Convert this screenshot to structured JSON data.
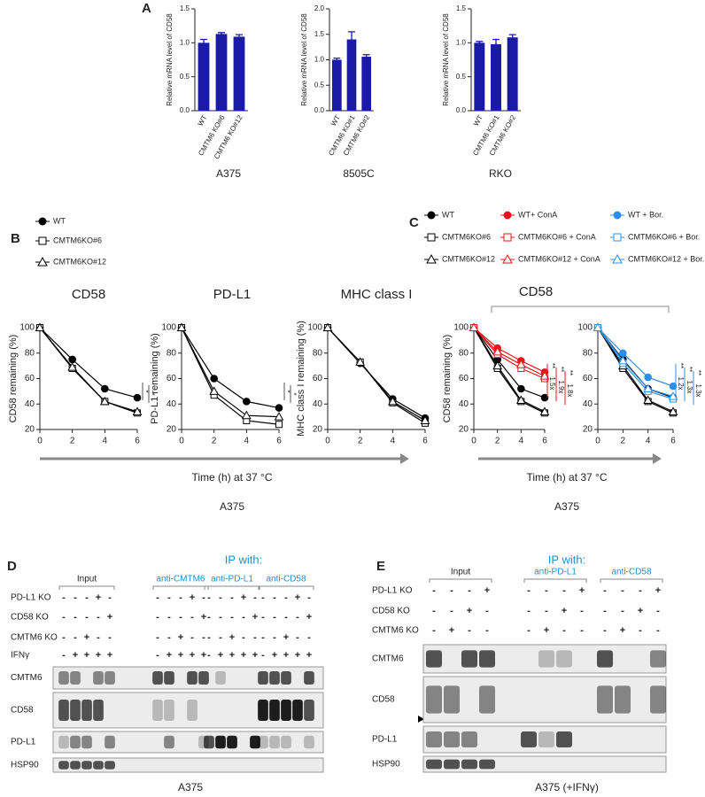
{
  "chart_data": [
    {
      "type": "bar",
      "panel": "A",
      "ylabel": "Relative mRNA level of CD58",
      "caption": "A375",
      "categories": [
        "WT",
        "CMTM6 KO#6",
        "CMTM6 KO#12"
      ],
      "values": [
        1.0,
        1.13,
        1.09
      ],
      "errors": [
        0.05,
        0.02,
        0.03
      ],
      "color": "#1a1aa6",
      "ylim": [
        0,
        1.5
      ],
      "yticks": [
        {
          "value": 0,
          "label": "0.0"
        },
        0.5,
        {
          "value": 1,
          "label": "1.0"
        },
        1.5
      ]
    },
    {
      "type": "bar",
      "ylabel": "Relative mRNA level of CD58",
      "caption": "8505C",
      "categories": [
        "WT",
        "CMTM6 KO#1",
        "CMTM6 KO#2"
      ],
      "values": [
        1.0,
        1.4,
        1.06
      ],
      "errors": [
        0.03,
        0.15,
        0.04
      ],
      "color": "#1a1aa6",
      "ylim": [
        0,
        2
      ],
      "yticks": [
        {
          "value": 0,
          "label": "0.0"
        },
        0.5,
        {
          "value": 1,
          "label": "1.0"
        },
        1.5,
        {
          "value": 2,
          "label": "2.0"
        }
      ]
    },
    {
      "type": "bar",
      "ylabel": "Relative mRNA level of CD58",
      "caption": "RKO",
      "categories": [
        "WT",
        "CMTM6 KO#1",
        "CMTM6 KO#2"
      ],
      "values": [
        1.0,
        0.98,
        1.08
      ],
      "errors": [
        0.02,
        0.07,
        0.04
      ],
      "color": "#1a1aa6",
      "ylim": [
        0,
        1.5
      ],
      "yticks": [
        {
          "value": 0,
          "label": "0.0"
        },
        0.5,
        {
          "value": 1,
          "label": "1.0"
        },
        1.5
      ]
    },
    {
      "type": "line",
      "panel": "B",
      "title": "CD58",
      "ylabel": "CD58 remaining (%)",
      "xlabel": "Time (h) at 37 °C",
      "caption": "A375",
      "x": [
        0,
        2,
        4,
        6
      ],
      "xlim": [
        0,
        6
      ],
      "xticks": [
        0,
        2,
        4,
        6
      ],
      "ylim": [
        20,
        100
      ],
      "yticks": [
        20,
        40,
        60,
        80,
        100
      ],
      "annotations": [
        "*",
        "*"
      ],
      "series": [
        {
          "name": "WT",
          "color": "#000000",
          "marker": "circle",
          "filled": true,
          "values": [
            100,
            75,
            52,
            45
          ]
        },
        {
          "name": "CMTM6KO#6",
          "color": "#000000",
          "marker": "square",
          "filled": false,
          "values": [
            100,
            68,
            42,
            33
          ]
        },
        {
          "name": "CMTM6KO#12",
          "color": "#000000",
          "marker": "triangle",
          "filled": false,
          "values": [
            100,
            69,
            42,
            34
          ]
        }
      ]
    },
    {
      "type": "line",
      "title": "PD-L1",
      "ylabel": "PD-L1 remaining (%)",
      "x": [
        0,
        2,
        4,
        6
      ],
      "xlim": [
        0,
        6
      ],
      "xticks": [
        0,
        2,
        4,
        6
      ],
      "ylim": [
        20,
        100
      ],
      "yticks": [
        20,
        40,
        60,
        80,
        100
      ],
      "annotations": [
        "*",
        "*"
      ],
      "series": [
        {
          "color": "#000000",
          "marker": "circle",
          "filled": true,
          "values": [
            100,
            60,
            42,
            37
          ]
        },
        {
          "color": "#000000",
          "marker": "square",
          "filled": false,
          "values": [
            100,
            47,
            27,
            24
          ]
        },
        {
          "color": "#000000",
          "marker": "triangle",
          "filled": false,
          "values": [
            100,
            50,
            31,
            30
          ]
        }
      ]
    },
    {
      "type": "line",
      "title": "MHC class I",
      "ylabel": "MHC class I remaining (%)",
      "x": [
        0,
        2,
        4,
        6
      ],
      "xlim": [
        0,
        6
      ],
      "xticks": [
        0,
        2,
        4,
        6
      ],
      "ylim": [
        20,
        100
      ],
      "yticks": [
        20,
        40,
        60,
        80,
        100
      ],
      "series": [
        {
          "color": "#000000",
          "marker": "circle",
          "filled": true,
          "values": [
            100,
            72,
            44,
            29
          ]
        },
        {
          "color": "#000000",
          "marker": "square",
          "filled": false,
          "values": [
            100,
            73,
            41,
            25
          ]
        },
        {
          "color": "#000000",
          "marker": "triangle",
          "filled": false,
          "values": [
            100,
            73,
            42,
            27
          ]
        }
      ]
    },
    {
      "type": "line",
      "panel": "C",
      "title": "CD58",
      "ylabel": "CD58 remaining (%)",
      "xlabel": "Time (h) at 37 °C",
      "caption": "A375",
      "x": [
        0,
        2,
        4,
        6
      ],
      "xlim": [
        0,
        6
      ],
      "xticks": [
        0,
        2,
        4,
        6
      ],
      "ylim": [
        20,
        100
      ],
      "yticks": [
        20,
        40,
        60,
        80,
        100
      ],
      "annotations": [
        "**",
        "1.5x",
        "**",
        "1.9x",
        "**",
        "1.8x"
      ],
      "series": [
        {
          "name": "WT",
          "color": "#000000",
          "marker": "circle",
          "filled": true,
          "values": [
            100,
            75,
            52,
            45
          ]
        },
        {
          "name": "CMTM6KO#6",
          "color": "#000000",
          "marker": "square",
          "filled": false,
          "values": [
            100,
            68,
            42,
            33
          ]
        },
        {
          "name": "CMTM6KO#12",
          "color": "#000000",
          "marker": "triangle",
          "filled": false,
          "values": [
            100,
            70,
            43,
            34
          ]
        },
        {
          "name": "WT+ ConA",
          "color": "#e8141a",
          "marker": "circle",
          "filled": true,
          "values": [
            100,
            84,
            74,
            65
          ]
        },
        {
          "name": "CMTM6KO#6 + ConA",
          "color": "#e8141a",
          "marker": "square",
          "filled": false,
          "values": [
            100,
            79,
            68,
            60
          ]
        },
        {
          "name": "CMTM6KO#12 + ConA",
          "color": "#e8141a",
          "marker": "triangle",
          "filled": false,
          "values": [
            100,
            81,
            71,
            62
          ]
        }
      ]
    },
    {
      "type": "line",
      "x": [
        0,
        2,
        4,
        6
      ],
      "xlim": [
        0,
        6
      ],
      "xticks": [
        0,
        2,
        4,
        6
      ],
      "ylim": [
        20,
        100
      ],
      "yticks": [
        20,
        40,
        60,
        80,
        100
      ],
      "annotations": [
        "**",
        "1.2x",
        "**",
        "1.3x",
        "**",
        "1.3x"
      ],
      "series": [
        {
          "color": "#000000",
          "marker": "circle",
          "filled": true,
          "values": [
            100,
            75,
            52,
            45
          ]
        },
        {
          "color": "#000000",
          "marker": "square",
          "filled": false,
          "values": [
            100,
            68,
            42,
            33
          ]
        },
        {
          "color": "#000000",
          "marker": "triangle",
          "filled": false,
          "values": [
            100,
            70,
            43,
            34
          ]
        },
        {
          "name": "WT + Bor.",
          "color": "#2f8fe8",
          "marker": "circle",
          "filled": true,
          "values": [
            100,
            80,
            61,
            54
          ]
        },
        {
          "name": "CMTM6KO#6 + Bor.",
          "color": "#2f8fe8",
          "marker": "square",
          "filled": false,
          "values": [
            100,
            72,
            50,
            44
          ]
        },
        {
          "name": "CMTM6KO#12 + Bor.",
          "color": "#2f8fe8",
          "marker": "triangle",
          "filled": false,
          "values": [
            100,
            74,
            52,
            46
          ]
        }
      ]
    }
  ],
  "blots": [
    {
      "panel": "D",
      "title": "IP with:",
      "groups": [
        "Input",
        "anti-CMTM6",
        "anti-PD-L1",
        "anti-CD58"
      ],
      "caption": "A375",
      "conditions": [
        {
          "label": "PD-L1 KO",
          "signs": [
            "-",
            "-",
            "-",
            "+",
            "-",
            "-",
            "-",
            "-",
            "+",
            "-",
            "-",
            "-",
            "-",
            "+",
            "-",
            "-",
            "-",
            "-",
            "+",
            "-"
          ]
        },
        {
          "label": "CD58 KO",
          "signs": [
            "-",
            "-",
            "-",
            "-",
            "+",
            "-",
            "-",
            "-",
            "-",
            "+",
            "-",
            "-",
            "-",
            "-",
            "+",
            "-",
            "-",
            "-",
            "-",
            "+"
          ]
        },
        {
          "label": "CMTM6 KO",
          "signs": [
            "-",
            "-",
            "+",
            "-",
            "-",
            "-",
            "-",
            "+",
            "-",
            "-",
            "-",
            "-",
            "+",
            "-",
            "-",
            "-",
            "-",
            "+",
            "-",
            "-"
          ]
        },
        {
          "label": "IFNγ",
          "signs": [
            "-",
            "+",
            "+",
            "+",
            "+",
            "-",
            "+",
            "+",
            "+",
            "+",
            "-",
            "+",
            "+",
            "+",
            "+",
            "-",
            "+",
            "+",
            "+",
            "+"
          ]
        }
      ],
      "bands": [
        "CMTM6",
        "CD58",
        "PD-L1",
        "HSP90"
      ]
    },
    {
      "panel": "E",
      "title": "IP with:",
      "groups": [
        "Input",
        "anti-PD-L1",
        "anti-CD58"
      ],
      "caption": "A375 (+IFNγ)",
      "conditions": [
        {
          "label": "PD-L1 KO",
          "signs": [
            "-",
            "-",
            "-",
            "+",
            "-",
            "-",
            "-",
            "+",
            "-",
            "-",
            "-",
            "+"
          ]
        },
        {
          "label": "CD58 KO",
          "signs": [
            "-",
            "-",
            "+",
            "-",
            "-",
            "-",
            "+",
            "-",
            "-",
            "-",
            "+",
            "-"
          ]
        },
        {
          "label": "CMTM6 KO",
          "signs": [
            "-",
            "+",
            "-",
            "-",
            "-",
            "+",
            "-",
            "-",
            "-",
            "+",
            "-",
            "-"
          ]
        }
      ],
      "bands": [
        "CMTM6",
        "CD58",
        "PD-L1",
        "HSP90"
      ]
    }
  ]
}
